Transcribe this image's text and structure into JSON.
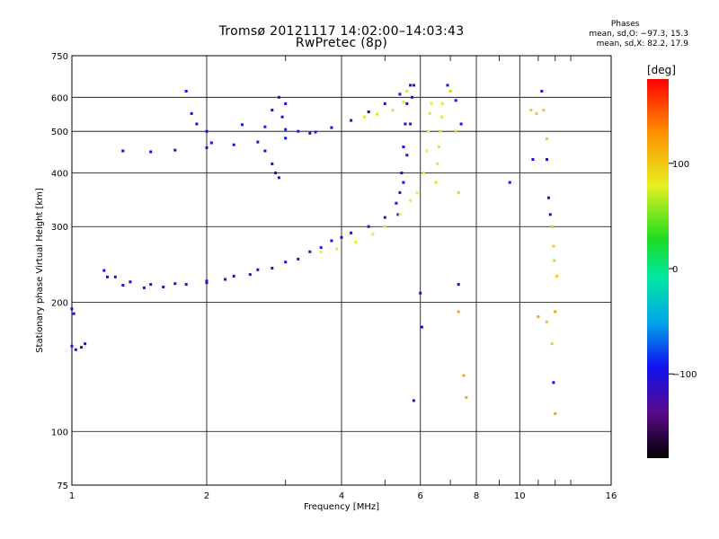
{
  "header": {
    "title_line1": "Tromsø 20121117 14:02:00–14:03:43",
    "title_line2": "RwPretec (8p)"
  },
  "stats": {
    "heading": "Phases",
    "line_o": "mean, sd,O: −97.3, 15.3",
    "line_x": "mean, sd,X:  82.2, 17.9"
  },
  "colorbar": {
    "label": "[deg]",
    "ticks": [
      "100",
      "0",
      "−100"
    ],
    "tick_values": [
      100,
      0,
      -100
    ],
    "range": [
      -180,
      180
    ]
  },
  "chart_data": {
    "type": "scatter",
    "xlabel": "Frequency [MHz]",
    "ylabel": "Stationary phase Virtual Height [km]",
    "xscale": "log",
    "yscale": "log",
    "xlim": [
      1,
      16
    ],
    "ylim": [
      75,
      750
    ],
    "xticks": [
      1,
      2,
      4,
      6,
      8,
      10,
      16
    ],
    "xtick_labels": [
      "1",
      "2",
      "4",
      "6",
      "8",
      "10",
      "16"
    ],
    "xminor": [
      3,
      5,
      7,
      9,
      11,
      12,
      13
    ],
    "yticks": [
      75,
      100,
      200,
      300,
      400,
      500,
      600,
      750
    ],
    "ytick_labels": [
      "75",
      "100",
      "200",
      "300",
      "400",
      "500",
      "600",
      "750"
    ],
    "grid": true,
    "traces": [
      {
        "phase": -110,
        "points": [
          [
            1.0,
            158
          ],
          [
            1.02,
            155
          ],
          [
            1.05,
            157
          ],
          [
            1.07,
            160
          ]
        ]
      },
      {
        "phase": -110,
        "points": [
          [
            1.0,
            193
          ],
          [
            1.01,
            188
          ]
        ]
      },
      {
        "phase": -105,
        "points": [
          [
            1.18,
            237
          ],
          [
            1.25,
            229
          ],
          [
            1.35,
            223
          ],
          [
            1.5,
            220
          ],
          [
            1.7,
            221
          ],
          [
            2.0,
            224
          ],
          [
            2.3,
            230
          ],
          [
            2.6,
            238
          ],
          [
            3.0,
            248
          ],
          [
            3.4,
            262
          ],
          [
            3.8,
            278
          ],
          [
            4.2,
            290
          ],
          [
            4.6,
            300
          ],
          [
            5.0,
            315
          ],
          [
            5.3,
            340
          ],
          [
            5.5,
            380
          ],
          [
            5.6,
            440
          ],
          [
            5.7,
            520
          ],
          [
            5.75,
            600
          ],
          [
            5.8,
            640
          ]
        ]
      },
      {
        "phase": -110,
        "points": [
          [
            1.2,
            229
          ],
          [
            1.3,
            219
          ],
          [
            1.45,
            216
          ],
          [
            1.6,
            217
          ],
          [
            1.8,
            220
          ],
          [
            2.0,
            222
          ],
          [
            2.2,
            226
          ],
          [
            2.5,
            232
          ],
          [
            2.8,
            240
          ],
          [
            3.2,
            252
          ],
          [
            3.6,
            268
          ],
          [
            4.0,
            283
          ]
        ]
      },
      {
        "phase": -100,
        "points": [
          [
            1.3,
            450
          ],
          [
            1.5,
            448
          ],
          [
            1.7,
            452
          ],
          [
            2.0,
            458
          ],
          [
            2.3,
            465
          ],
          [
            2.6,
            472
          ],
          [
            3.0,
            482
          ],
          [
            3.4,
            495
          ],
          [
            3.8,
            510
          ],
          [
            4.2,
            530
          ],
          [
            4.6,
            555
          ],
          [
            5.0,
            580
          ],
          [
            5.4,
            610
          ],
          [
            5.7,
            640
          ]
        ]
      },
      {
        "phase": -95,
        "points": [
          [
            2.4,
            518
          ],
          [
            2.7,
            512
          ],
          [
            3.0,
            505
          ],
          [
            3.2,
            500
          ],
          [
            3.5,
            498
          ]
        ]
      },
      {
        "phase": -100,
        "points": [
          [
            1.8,
            620
          ],
          [
            1.85,
            550
          ],
          [
            1.9,
            520
          ],
          [
            2.0,
            500
          ],
          [
            2.05,
            470
          ]
        ]
      },
      {
        "phase": -100,
        "points": [
          [
            2.8,
            560
          ],
          [
            2.9,
            600
          ],
          [
            3.0,
            580
          ],
          [
            2.95,
            540
          ]
        ]
      },
      {
        "phase": -105,
        "points": [
          [
            2.7,
            450
          ],
          [
            2.8,
            420
          ],
          [
            2.85,
            400
          ],
          [
            2.9,
            390
          ]
        ]
      },
      {
        "phase": -100,
        "points": [
          [
            5.35,
            320
          ],
          [
            5.4,
            360
          ],
          [
            5.45,
            400
          ],
          [
            5.5,
            460
          ],
          [
            5.55,
            520
          ],
          [
            5.6,
            580
          ]
        ]
      },
      {
        "phase": 90,
        "points": [
          [
            3.6,
            262
          ],
          [
            3.9,
            266
          ],
          [
            4.3,
            276
          ],
          [
            4.7,
            288
          ],
          [
            5.0,
            300
          ],
          [
            5.4,
            320
          ],
          [
            5.7,
            345
          ],
          [
            5.9,
            360
          ],
          [
            6.1,
            400
          ],
          [
            6.2,
            450
          ],
          [
            6.25,
            500
          ],
          [
            6.3,
            550
          ],
          [
            6.35,
            580
          ]
        ]
      },
      {
        "phase": 95,
        "points": [
          [
            6.5,
            380
          ],
          [
            6.55,
            420
          ],
          [
            6.6,
            460
          ],
          [
            6.65,
            500
          ],
          [
            6.7,
            540
          ],
          [
            6.72,
            580
          ]
        ]
      },
      {
        "phase": 85,
        "points": [
          [
            4.5,
            540
          ],
          [
            4.8,
            548
          ],
          [
            5.2,
            560
          ],
          [
            5.5,
            585
          ],
          [
            5.6,
            620
          ]
        ]
      },
      {
        "phase": 110,
        "points": [
          [
            7.0,
            620
          ],
          [
            7.2,
            500
          ],
          [
            7.3,
            360
          ],
          [
            10.6,
            560
          ],
          [
            10.9,
            550
          ],
          [
            11.3,
            560
          ],
          [
            11.5,
            480
          ],
          [
            11.8,
            300
          ],
          [
            11.9,
            270
          ],
          [
            11.95,
            250
          ],
          [
            12.1,
            230
          ],
          [
            11.5,
            180
          ],
          [
            11.8,
            160
          ]
        ]
      },
      {
        "phase": -100,
        "points": [
          [
            6.9,
            640
          ],
          [
            7.2,
            590
          ],
          [
            7.4,
            520
          ],
          [
            11.2,
            620
          ],
          [
            11.5,
            430
          ],
          [
            11.7,
            320
          ],
          [
            11.6,
            350
          ],
          [
            11.9,
            130
          ],
          [
            6.05,
            175
          ],
          [
            6.0,
            210
          ],
          [
            5.8,
            118
          ],
          [
            7.3,
            220
          ],
          [
            9.5,
            380
          ],
          [
            10.7,
            430
          ]
        ]
      },
      {
        "phase": 130,
        "points": [
          [
            7.3,
            190
          ],
          [
            7.5,
            135
          ],
          [
            7.6,
            120
          ],
          [
            11.0,
            185
          ],
          [
            12.0,
            190
          ],
          [
            12.0,
            110
          ]
        ]
      }
    ]
  }
}
